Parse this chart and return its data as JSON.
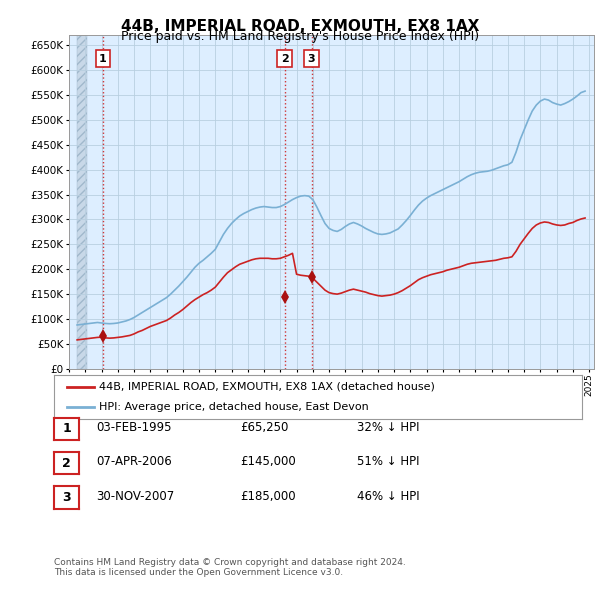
{
  "title": "44B, IMPERIAL ROAD, EXMOUTH, EX8 1AX",
  "subtitle": "Price paid vs. HM Land Registry's House Price Index (HPI)",
  "ylim": [
    0,
    670000
  ],
  "ylabel_vals": [
    0,
    50000,
    100000,
    150000,
    200000,
    250000,
    300000,
    350000,
    400000,
    450000,
    500000,
    550000,
    600000,
    650000
  ],
  "xlim_start": 1993.5,
  "xlim_end": 2025.3,
  "hpi_years": [
    1993.5,
    1993.75,
    1994.0,
    1994.25,
    1994.5,
    1994.75,
    1995.0,
    1995.25,
    1995.5,
    1995.75,
    1996.0,
    1996.25,
    1996.5,
    1996.75,
    1997.0,
    1997.25,
    1997.5,
    1997.75,
    1998.0,
    1998.25,
    1998.5,
    1998.75,
    1999.0,
    1999.25,
    1999.5,
    1999.75,
    2000.0,
    2000.25,
    2000.5,
    2000.75,
    2001.0,
    2001.25,
    2001.5,
    2001.75,
    2002.0,
    2002.25,
    2002.5,
    2002.75,
    2003.0,
    2003.25,
    2003.5,
    2003.75,
    2004.0,
    2004.25,
    2004.5,
    2004.75,
    2005.0,
    2005.25,
    2005.5,
    2005.75,
    2006.0,
    2006.25,
    2006.5,
    2006.75,
    2007.0,
    2007.25,
    2007.5,
    2007.75,
    2008.0,
    2008.25,
    2008.5,
    2008.75,
    2009.0,
    2009.25,
    2009.5,
    2009.75,
    2010.0,
    2010.25,
    2010.5,
    2010.75,
    2011.0,
    2011.25,
    2011.5,
    2011.75,
    2012.0,
    2012.25,
    2012.5,
    2012.75,
    2013.0,
    2013.25,
    2013.5,
    2013.75,
    2014.0,
    2014.25,
    2014.5,
    2014.75,
    2015.0,
    2015.25,
    2015.5,
    2015.75,
    2016.0,
    2016.25,
    2016.5,
    2016.75,
    2017.0,
    2017.25,
    2017.5,
    2017.75,
    2018.0,
    2018.25,
    2018.5,
    2018.75,
    2019.0,
    2019.25,
    2019.5,
    2019.75,
    2020.0,
    2020.25,
    2020.5,
    2020.75,
    2021.0,
    2021.25,
    2021.5,
    2021.75,
    2022.0,
    2022.25,
    2022.5,
    2022.75,
    2023.0,
    2023.25,
    2023.5,
    2023.75,
    2024.0,
    2024.25,
    2024.5,
    2024.75
  ],
  "hpi_values": [
    88000,
    89000,
    90000,
    91000,
    92000,
    93000,
    92000,
    91000,
    90500,
    91000,
    92000,
    94000,
    96000,
    99000,
    103000,
    108000,
    113000,
    118000,
    123000,
    128000,
    133000,
    138000,
    143000,
    150000,
    158000,
    166000,
    175000,
    184000,
    194000,
    204000,
    212000,
    218000,
    225000,
    232000,
    240000,
    255000,
    270000,
    282000,
    292000,
    300000,
    307000,
    312000,
    316000,
    320000,
    323000,
    325000,
    326000,
    325000,
    324000,
    324000,
    326000,
    330000,
    335000,
    340000,
    344000,
    347000,
    348000,
    347000,
    340000,
    325000,
    308000,
    292000,
    282000,
    278000,
    276000,
    280000,
    286000,
    291000,
    294000,
    291000,
    287000,
    282000,
    278000,
    274000,
    271000,
    270000,
    271000,
    273000,
    277000,
    281000,
    289000,
    298000,
    308000,
    319000,
    329000,
    337000,
    343000,
    348000,
    352000,
    356000,
    360000,
    364000,
    368000,
    372000,
    376000,
    381000,
    386000,
    390000,
    393000,
    395000,
    396000,
    397000,
    399000,
    402000,
    405000,
    408000,
    410000,
    415000,
    435000,
    460000,
    480000,
    500000,
    518000,
    530000,
    538000,
    542000,
    540000,
    535000,
    532000,
    530000,
    533000,
    537000,
    542000,
    548000,
    555000,
    558000
  ],
  "prop_years": [
    1993.5,
    1993.75,
    1994.0,
    1994.25,
    1994.5,
    1994.75,
    1995.0,
    1995.25,
    1995.5,
    1995.75,
    1996.0,
    1996.25,
    1996.5,
    1996.75,
    1997.0,
    1997.25,
    1997.5,
    1997.75,
    1998.0,
    1998.25,
    1998.5,
    1998.75,
    1999.0,
    1999.25,
    1999.5,
    1999.75,
    2000.0,
    2000.25,
    2000.5,
    2000.75,
    2001.0,
    2001.25,
    2001.5,
    2001.75,
    2002.0,
    2002.25,
    2002.5,
    2002.75,
    2003.0,
    2003.25,
    2003.5,
    2003.75,
    2004.0,
    2004.25,
    2004.5,
    2004.75,
    2005.0,
    2005.25,
    2005.5,
    2005.75,
    2006.0,
    2006.25,
    2006.5,
    2006.75,
    2007.0,
    2007.25,
    2007.5,
    2007.75,
    2008.0,
    2008.25,
    2008.5,
    2008.75,
    2009.0,
    2009.25,
    2009.5,
    2009.75,
    2010.0,
    2010.25,
    2010.5,
    2010.75,
    2011.0,
    2011.25,
    2011.5,
    2011.75,
    2012.0,
    2012.25,
    2012.5,
    2012.75,
    2013.0,
    2013.25,
    2013.5,
    2013.75,
    2014.0,
    2014.25,
    2014.5,
    2014.75,
    2015.0,
    2015.25,
    2015.5,
    2015.75,
    2016.0,
    2016.25,
    2016.5,
    2016.75,
    2017.0,
    2017.25,
    2017.5,
    2017.75,
    2018.0,
    2018.25,
    2018.5,
    2018.75,
    2019.0,
    2019.25,
    2019.5,
    2019.75,
    2020.0,
    2020.25,
    2020.5,
    2020.75,
    2021.0,
    2021.25,
    2021.5,
    2021.75,
    2022.0,
    2022.25,
    2022.5,
    2022.75,
    2023.0,
    2023.25,
    2023.5,
    2023.75,
    2024.0,
    2024.25,
    2024.5,
    2024.75
  ],
  "prop_values": [
    58000,
    59000,
    60000,
    61000,
    62000,
    63000,
    63500,
    62000,
    61500,
    62000,
    63000,
    64000,
    65500,
    67000,
    70000,
    74000,
    77000,
    81000,
    85000,
    88000,
    91000,
    94000,
    97000,
    102000,
    108000,
    113000,
    119000,
    126000,
    133000,
    139000,
    144000,
    149000,
    153000,
    158000,
    164000,
    174000,
    184000,
    193000,
    199000,
    205000,
    210000,
    213000,
    216000,
    219000,
    221000,
    222000,
    222000,
    222000,
    221000,
    221000,
    222000,
    225000,
    228000,
    232000,
    190000,
    188000,
    187000,
    186000,
    182000,
    174000,
    166000,
    158000,
    153000,
    151000,
    150000,
    152000,
    155000,
    158000,
    160000,
    158000,
    156000,
    154000,
    151000,
    149000,
    147000,
    146000,
    147000,
    148000,
    150000,
    153000,
    157000,
    162000,
    167000,
    173000,
    179000,
    183000,
    186000,
    189000,
    191000,
    193000,
    195000,
    198000,
    200000,
    202000,
    204000,
    207000,
    210000,
    212000,
    213000,
    214000,
    215000,
    216000,
    217000,
    218000,
    220000,
    222000,
    223000,
    225000,
    236000,
    250000,
    261000,
    272000,
    282000,
    289000,
    293000,
    295000,
    294000,
    291000,
    289000,
    288000,
    289000,
    292000,
    294000,
    298000,
    301000,
    303000
  ],
  "sale_years": [
    1995.08,
    2006.27,
    2007.92
  ],
  "sale_prices": [
    65250,
    145000,
    185000
  ],
  "sale_labels": [
    "1",
    "2",
    "3"
  ],
  "legend_property_label": "44B, IMPERIAL ROAD, EXMOUTH, EX8 1AX (detached house)",
  "legend_hpi_label": "HPI: Average price, detached house, East Devon",
  "table_rows": [
    [
      "1",
      "03-FEB-1995",
      "£65,250",
      "32% ↓ HPI"
    ],
    [
      "2",
      "07-APR-2006",
      "£145,000",
      "51% ↓ HPI"
    ],
    [
      "3",
      "30-NOV-2007",
      "£185,000",
      "46% ↓ HPI"
    ]
  ],
  "footnote": "Contains HM Land Registry data © Crown copyright and database right 2024.\nThis data is licensed under the Open Government Licence v3.0.",
  "property_line_color": "#cc2222",
  "hpi_line_color": "#7ab0d4",
  "sale_marker_color": "#aa1111",
  "sale_vline_color": "#cc2222",
  "chart_bg_color": "#ddeeff",
  "hatch_bg_color": "#c8d8e8",
  "background_color": "#ffffff",
  "grid_color": "#b8cfe0",
  "title_fontsize": 11,
  "subtitle_fontsize": 9
}
